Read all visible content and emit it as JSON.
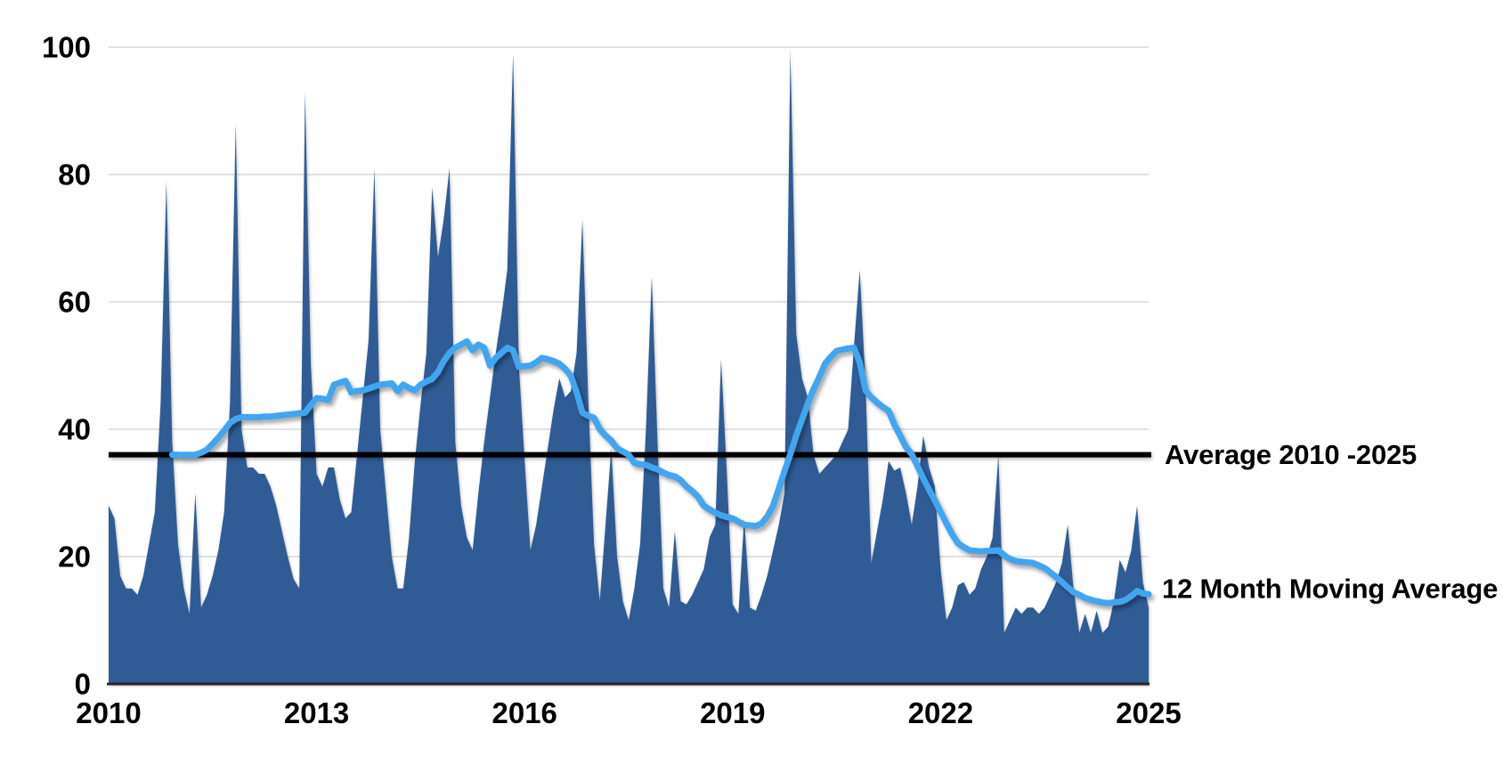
{
  "chart_data": {
    "type": "area",
    "title": "",
    "xlabel": "",
    "ylabel": "",
    "frequency": "monthly",
    "x_start": "2010-01",
    "x_end": "2025-01",
    "xticks": [
      2010,
      2013,
      2016,
      2019,
      2022,
      2025
    ],
    "yticks": [
      0,
      20,
      40,
      60,
      80,
      100
    ],
    "ylim": [
      0,
      100
    ],
    "grid": "horizontal",
    "legend_position": "none",
    "colors": {
      "area_fill": "#2F5C95",
      "moving_average_line": "#42A5F0",
      "average_line": "#000000",
      "gridline": "#D8D8D8",
      "axis_line": "#262626",
      "text": "#000000",
      "background": "#FFFFFF"
    },
    "series": [
      {
        "name": "monthly-values",
        "type": "area",
        "color": "#2F5C95",
        "start_index": 0,
        "values": [
          28,
          26,
          17,
          15,
          15,
          14,
          17,
          22,
          27,
          44,
          79,
          38,
          22,
          15,
          11,
          30,
          12,
          14,
          17,
          21,
          27,
          44,
          88,
          40,
          34,
          34,
          33,
          33,
          31,
          28,
          24,
          20,
          16.5,
          15,
          93,
          50,
          33,
          31,
          34,
          34,
          29,
          26,
          27,
          36,
          45,
          54,
          81,
          40,
          30,
          20,
          15,
          15,
          23,
          35,
          44,
          52,
          78,
          67,
          73,
          81,
          38,
          28,
          23,
          21,
          30,
          38,
          45,
          52,
          58,
          65,
          99,
          50,
          35,
          21,
          25,
          31,
          37,
          43,
          48,
          45,
          46,
          52,
          73,
          45,
          22,
          13,
          25,
          37,
          20,
          13,
          10,
          15,
          22,
          40,
          64,
          38,
          15,
          12,
          24,
          13,
          12.5,
          14,
          16,
          18,
          23,
          25,
          51,
          33,
          12.5,
          11,
          26,
          12,
          11.5,
          14,
          17,
          21,
          25,
          30,
          99.6,
          55,
          48,
          45,
          36,
          33,
          34,
          35,
          36,
          38,
          40,
          53,
          65,
          47,
          19,
          24,
          29,
          35,
          33.5,
          34,
          30,
          25,
          31,
          39,
          34,
          31,
          18,
          10,
          12,
          15.5,
          16,
          14,
          15,
          18,
          20,
          23,
          36,
          8,
          10,
          12,
          11,
          12,
          12,
          11,
          12,
          14,
          16,
          19,
          25,
          15,
          8,
          11,
          8,
          11.5,
          8,
          9,
          13,
          19.5,
          17.5,
          21,
          28,
          16,
          12
        ]
      },
      {
        "name": "12 Month Moving Average",
        "type": "line",
        "color": "#42A5F0",
        "start_index": 11,
        "values": [
          36.0,
          36.0,
          35.9,
          35.9,
          36.0,
          36.3,
          36.8,
          37.7,
          38.7,
          39.8,
          41.0,
          41.6,
          41.9,
          41.9,
          41.9,
          41.9,
          42.0,
          42.0,
          42.1,
          42.2,
          42.3,
          42.4,
          42.5,
          42.6,
          43.8,
          44.9,
          44.8,
          44.6,
          47.0,
          47.3,
          47.6,
          45.8,
          46.0,
          46.1,
          46.4,
          46.7,
          47.0,
          47.1,
          47.2,
          46.0,
          47.0,
          46.5,
          46.1,
          47.0,
          47.5,
          47.9,
          49.0,
          50.7,
          52.0,
          52.8,
          53.3,
          53.8,
          52.4,
          53.3,
          52.8,
          50.0,
          51.2,
          52.0,
          52.8,
          52.4,
          49.8,
          49.9,
          50.0,
          50.5,
          51.2,
          51.0,
          50.7,
          50.3,
          49.5,
          48.4,
          45.8,
          42.6,
          42.1,
          41.8,
          40.0,
          39.0,
          38.2,
          37.0,
          36.5,
          36.0,
          34.7,
          34.5,
          34.4,
          34.0,
          33.7,
          33.2,
          32.8,
          32.6,
          32.0,
          31.0,
          30.3,
          29.4,
          28.0,
          27.4,
          26.9,
          26.5,
          26.2,
          26.0,
          25.5,
          25.0,
          24.9,
          24.8,
          25.2,
          26.3,
          28.0,
          30.7,
          33.5,
          36.1,
          39.0,
          41.5,
          44.0,
          46.3,
          48.2,
          50.3,
          51.4,
          52.3,
          52.5,
          52.7,
          52.8,
          50.5,
          46.1,
          45.0,
          44.2,
          43.5,
          42.9,
          40.7,
          39.0,
          37.2,
          36.1,
          34.2,
          32.3,
          30.5,
          28.8,
          27.0,
          25.2,
          23.5,
          22.1,
          21.5,
          21.0,
          20.9,
          20.8,
          20.9,
          20.9,
          21.0,
          20.2,
          19.6,
          19.3,
          19.2,
          19.1,
          19.0,
          18.6,
          18.2,
          17.5,
          16.8,
          16.0,
          15.2,
          14.4,
          14.0,
          13.5,
          13.2,
          13.0,
          12.8,
          12.7,
          12.8,
          12.9,
          13.2,
          13.8,
          14.6,
          14.2,
          14.1
        ]
      }
    ],
    "average_line": {
      "label": "Average 2010 -2025",
      "value": 36,
      "color": "#000000"
    },
    "annotations": {
      "average_label": "Average 2010 -2025",
      "moving_average_label": "12 Month Moving Average"
    }
  }
}
